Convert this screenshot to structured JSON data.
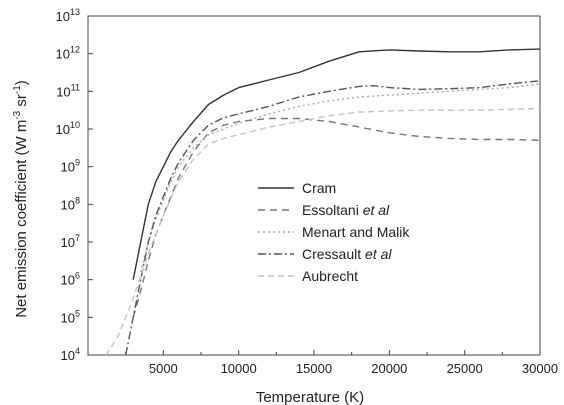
{
  "chart_data": {
    "type": "line",
    "title": "",
    "xlabel": "Temperature (K)",
    "ylabel_parts": [
      "Net emission coefficient (W m",
      "-3",
      " sr",
      "-1",
      ")"
    ],
    "xlim": [
      0,
      30000
    ],
    "ylim": [
      4,
      13
    ],
    "yscale": "log",
    "x_ticks": [
      5000,
      10000,
      15000,
      20000,
      25000,
      30000
    ],
    "x_tick_labels": [
      "5000",
      "10000",
      "15000",
      "20000",
      "25000",
      "30000"
    ],
    "y_ticks": [
      4,
      5,
      6,
      7,
      8,
      9,
      10,
      11,
      12,
      13
    ],
    "y_tick_labels": [
      "4",
      "5",
      "6",
      "7",
      "8",
      "9",
      "10",
      "11",
      "12",
      "13"
    ],
    "y_tick_base": "10",
    "grid": false,
    "legend_position": "center-right",
    "series": [
      {
        "name": "Cram",
        "italic_part": "",
        "style": "solid",
        "color": "#333333",
        "x": [
          3000,
          3500,
          4000,
          4500,
          5000,
          5500,
          6000,
          7000,
          8000,
          9000,
          10000,
          12000,
          14000,
          16000,
          18000,
          20000,
          22000,
          24000,
          26000,
          28000,
          30000
        ],
        "y": [
          6.0,
          7.0,
          8.0,
          8.6,
          9.0,
          9.4,
          9.7,
          10.2,
          10.65,
          10.9,
          11.1,
          11.3,
          11.5,
          11.8,
          12.05,
          12.1,
          12.07,
          12.05,
          12.05,
          12.1,
          12.12
        ]
      },
      {
        "name": "Essoltani ",
        "italic_part": "et al",
        "style": "dashed",
        "color": "#777777",
        "x": [
          3000,
          3500,
          4000,
          4500,
          5000,
          5500,
          6000,
          7000,
          8000,
          9000,
          10000,
          12000,
          14000,
          16000,
          18000,
          20000,
          22000,
          24000,
          26000,
          28000,
          30000
        ],
        "y": [
          5.0,
          5.7,
          6.5,
          7.2,
          7.7,
          8.2,
          8.7,
          9.4,
          9.9,
          10.1,
          10.2,
          10.28,
          10.28,
          10.2,
          10.05,
          9.9,
          9.8,
          9.75,
          9.72,
          9.72,
          9.7
        ]
      },
      {
        "name": "Menart and Malik",
        "italic_part": "",
        "style": "dotted",
        "color": "#aaaaaa",
        "x": [
          3500,
          4000,
          4500,
          5000,
          5500,
          6000,
          7000,
          8000,
          9000,
          10000,
          12000,
          14000,
          16000,
          18000,
          20000,
          22000,
          24000,
          26000,
          28000,
          30000
        ],
        "y": [
          6.2,
          7.0,
          7.6,
          8.1,
          8.6,
          9.0,
          9.5,
          9.85,
          10.0,
          10.15,
          10.4,
          10.6,
          10.75,
          10.85,
          10.9,
          10.95,
          11.0,
          11.05,
          11.1,
          11.2
        ]
      },
      {
        "name": "Cressault ",
        "italic_part": "et al",
        "style": "dashdot",
        "color": "#555555",
        "x": [
          2500,
          3000,
          3500,
          4000,
          4500,
          5000,
          5500,
          6000,
          7000,
          8000,
          9000,
          10000,
          12000,
          14000,
          16000,
          18000,
          19000,
          20000,
          22000,
          24000,
          26000,
          28000,
          30000
        ],
        "y": [
          4.0,
          5.0,
          6.0,
          7.0,
          7.7,
          8.2,
          8.7,
          9.1,
          9.7,
          10.1,
          10.3,
          10.4,
          10.6,
          10.85,
          11.0,
          11.13,
          11.15,
          11.1,
          11.05,
          11.07,
          11.1,
          11.2,
          11.28
        ]
      },
      {
        "name": "Aubrecht",
        "italic_part": "",
        "style": "dashed-light",
        "color": "#c4c4c4",
        "x": [
          1200,
          2000,
          3000,
          4000,
          5000,
          6000,
          7000,
          8000,
          9000,
          10000,
          12000,
          14000,
          16000,
          18000,
          20000,
          22000,
          24000,
          26000,
          28000,
          30000
        ],
        "y": [
          4.0,
          4.5,
          5.5,
          6.7,
          7.7,
          8.6,
          9.2,
          9.6,
          9.75,
          9.85,
          10.05,
          10.2,
          10.35,
          10.45,
          10.48,
          10.5,
          10.5,
          10.5,
          10.52,
          10.55
        ]
      }
    ]
  }
}
